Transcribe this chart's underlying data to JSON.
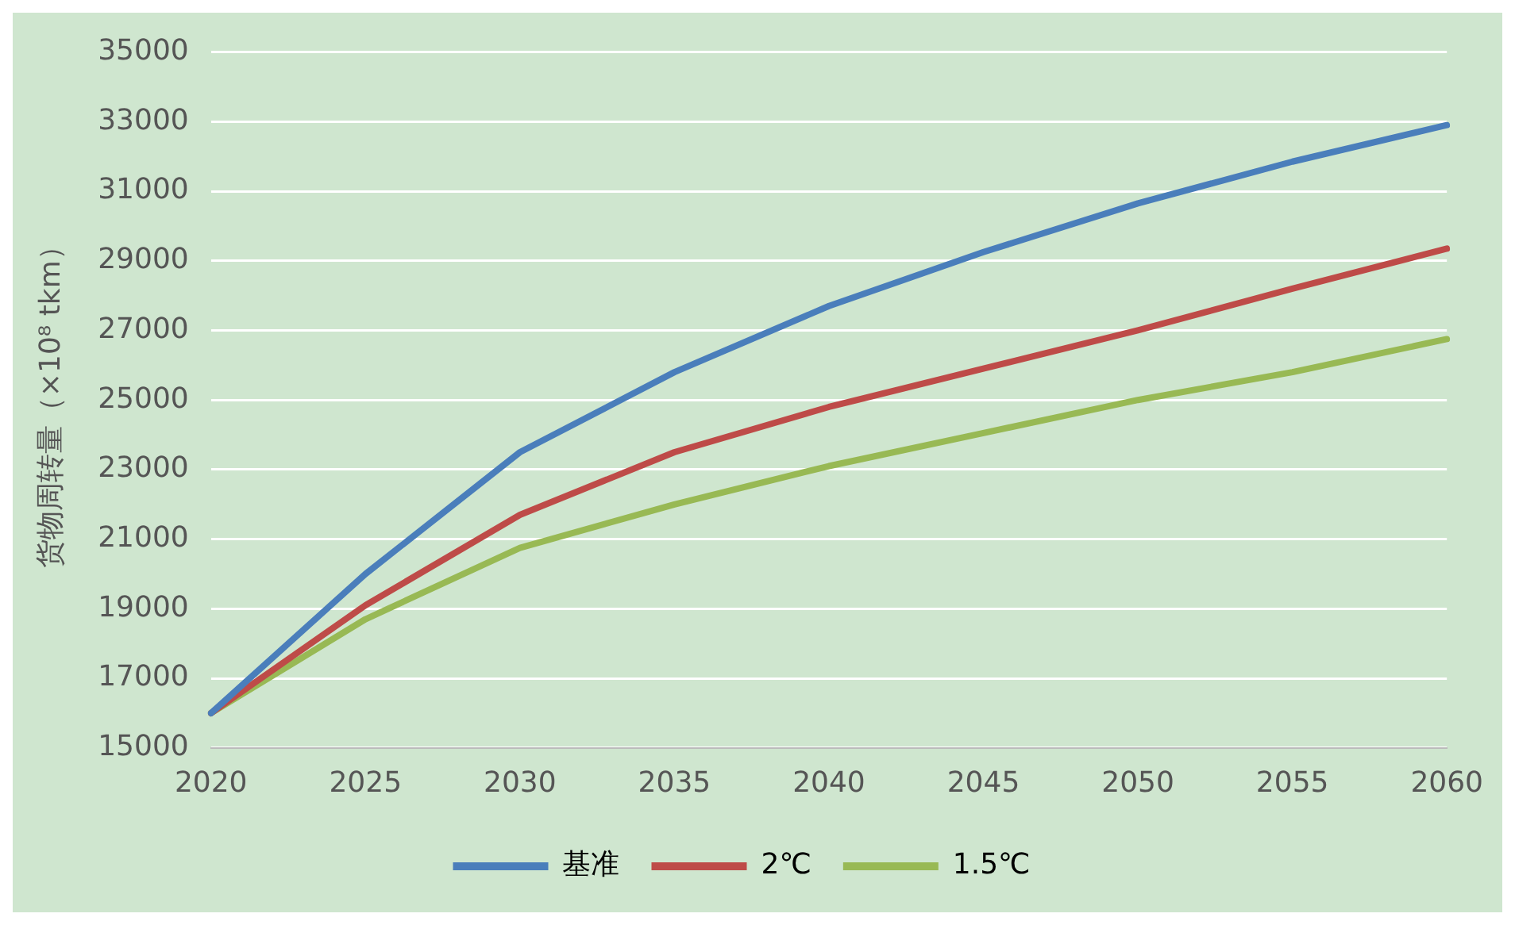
{
  "chart_data": {
    "type": "line",
    "ylabel": "货物周转量（×10⁸ tkm）",
    "categories": [
      "2020",
      "2025",
      "2030",
      "2035",
      "2040",
      "2045",
      "2050",
      "2055",
      "2060"
    ],
    "series": [
      {
        "name": "基准",
        "color": "#4a7ebb",
        "values": [
          16000,
          20000,
          23500,
          25800,
          27700,
          29250,
          30650,
          31850,
          32900
        ]
      },
      {
        "name": "2℃",
        "color": "#be4b48",
        "values": [
          16000,
          19100,
          21700,
          23500,
          24800,
          25900,
          27000,
          28200,
          29350
        ]
      },
      {
        "name": "1.5℃",
        "color": "#98b954",
        "values": [
          16000,
          18700,
          20750,
          22000,
          23100,
          24050,
          25000,
          25800,
          26750
        ]
      }
    ],
    "ylim": [
      15000,
      35000
    ],
    "yticks": [
      15000,
      17000,
      19000,
      21000,
      23000,
      25000,
      27000,
      29000,
      31000,
      33000,
      35000
    ],
    "grid": "y",
    "legend": "bottom",
    "marker": "none",
    "line_style": "solid"
  }
}
